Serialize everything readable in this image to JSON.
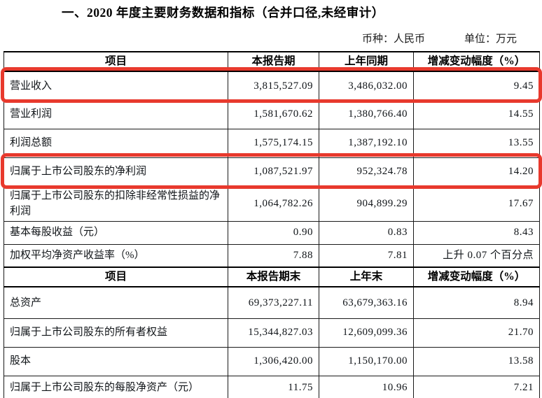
{
  "title": "一、2020 年度主要财务数据和指标（合并口径,未经审计）",
  "meta": {
    "currency": "币种：人民币",
    "unit": "单位：万元"
  },
  "highlight_color": "#e8392d",
  "table": {
    "sections": [
      {
        "header": [
          "项目",
          "本报告期",
          "上年同期",
          "增减变动幅度（%）"
        ],
        "rows": [
          {
            "label": "营业收入",
            "current": "3,815,527.09",
            "prior": "3,486,032.00",
            "change": "9.45",
            "highlighted": true
          },
          {
            "label": "营业利润",
            "current": "1,581,670.62",
            "prior": "1,380,766.40",
            "change": "14.55",
            "highlighted": false
          },
          {
            "label": "利润总额",
            "current": "1,575,174.15",
            "prior": "1,387,192.10",
            "change": "13.55",
            "highlighted": false
          },
          {
            "label": "归属于上市公司股东的净利润",
            "current": "1,087,521.97",
            "prior": "952,324.78",
            "change": "14.20",
            "highlighted": true
          },
          {
            "label": "归属于上市公司股东的扣除非经常性损益的净利润",
            "current": "1,064,782.26",
            "prior": "904,899.29",
            "change": "17.67",
            "highlighted": false
          },
          {
            "label": "基本每股收益（元）",
            "current": "0.90",
            "prior": "0.83",
            "change": "8.43",
            "highlighted": false
          },
          {
            "label": "加权平均净资产收益率（%）",
            "current": "7.88",
            "prior": "7.81",
            "change": "上升 0.07 个百分点",
            "highlighted": false
          }
        ]
      },
      {
        "header": [
          "项目",
          "本报告期末",
          "上年末",
          "增减变动幅度（%）"
        ],
        "rows": [
          {
            "label": "总资产",
            "current": "69,373,227.11",
            "prior": "63,679,363.16",
            "change": "8.94",
            "highlighted": false
          },
          {
            "label": "归属于上市公司股东的所有者权益",
            "current": "15,344,827.03",
            "prior": "12,609,099.36",
            "change": "21.70",
            "highlighted": false
          },
          {
            "label": "股本",
            "current": "1,306,420.00",
            "prior": "1,150,170.00",
            "change": "13.58",
            "highlighted": false
          },
          {
            "label": "归属于上市公司股东的每股净资产（元）",
            "current": "11.75",
            "prior": "10.96",
            "change": "7.21",
            "highlighted": false
          }
        ]
      }
    ]
  }
}
